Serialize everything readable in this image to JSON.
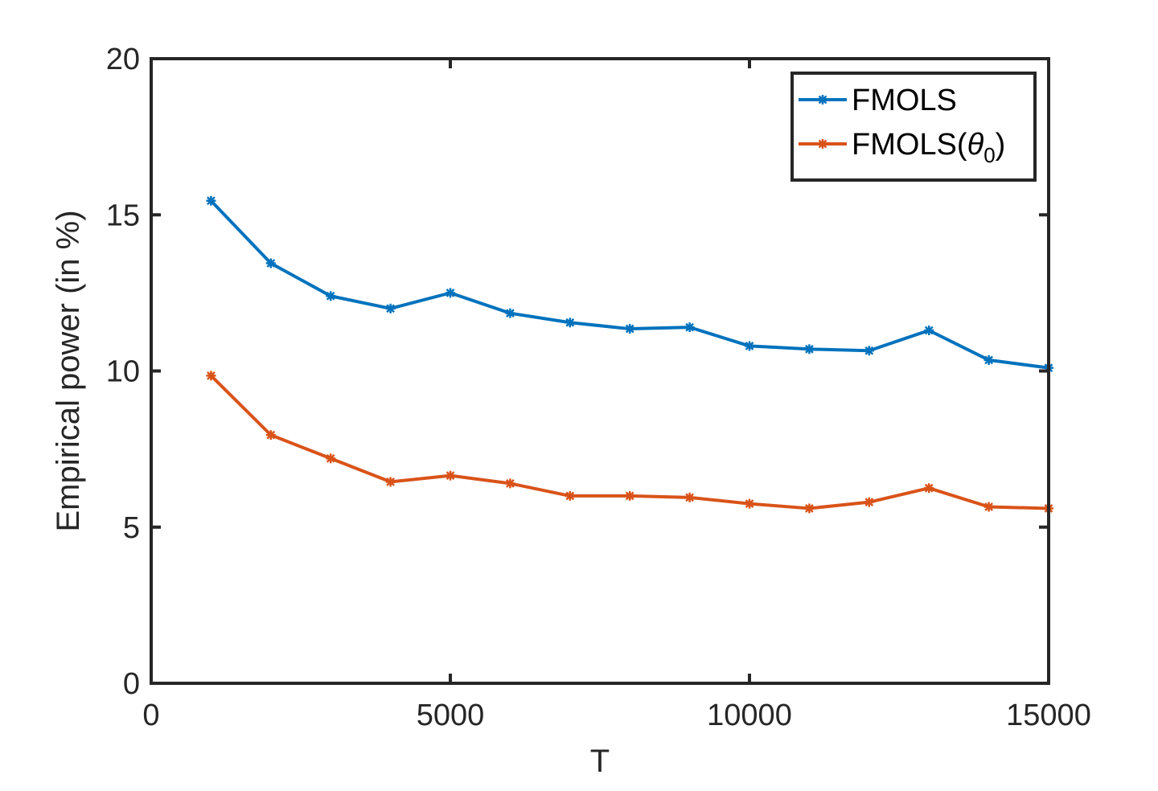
{
  "chart_data": {
    "type": "line",
    "title": "",
    "xlabel": "T",
    "ylabel": "Empirical power (in %)",
    "xlim": [
      0,
      15000
    ],
    "ylim": [
      0,
      20
    ],
    "x_ticks": [
      0,
      5000,
      10000,
      15000
    ],
    "y_ticks": [
      0,
      5,
      10,
      15,
      20
    ],
    "x_tick_labels": [
      "0",
      "5000",
      "10000",
      "15000"
    ],
    "y_tick_labels": [
      "0",
      "5",
      "10",
      "15",
      "20"
    ],
    "grid": false,
    "legend_position": "top-right",
    "x": [
      1000,
      2000,
      3000,
      4000,
      5000,
      6000,
      7000,
      8000,
      9000,
      10000,
      11000,
      12000,
      13000,
      14000,
      15000
    ],
    "series": [
      {
        "name": "FMOLS",
        "color": "#0072BD",
        "marker": "star",
        "values": [
          15.45,
          13.45,
          12.4,
          12.0,
          12.5,
          11.85,
          11.55,
          11.35,
          11.4,
          10.8,
          10.7,
          10.65,
          11.3,
          10.35,
          10.1
        ]
      },
      {
        "name": "FMOLS(θ0)",
        "legend_main": "FMOLS(",
        "legend_symbol": "θ",
        "legend_subscript": "0",
        "legend_close": ")",
        "color": "#D95319",
        "marker": "star",
        "values": [
          9.85,
          7.95,
          7.2,
          6.45,
          6.65,
          6.4,
          6.0,
          6.0,
          5.95,
          5.75,
          5.6,
          5.8,
          6.25,
          5.65,
          5.6
        ]
      }
    ]
  }
}
